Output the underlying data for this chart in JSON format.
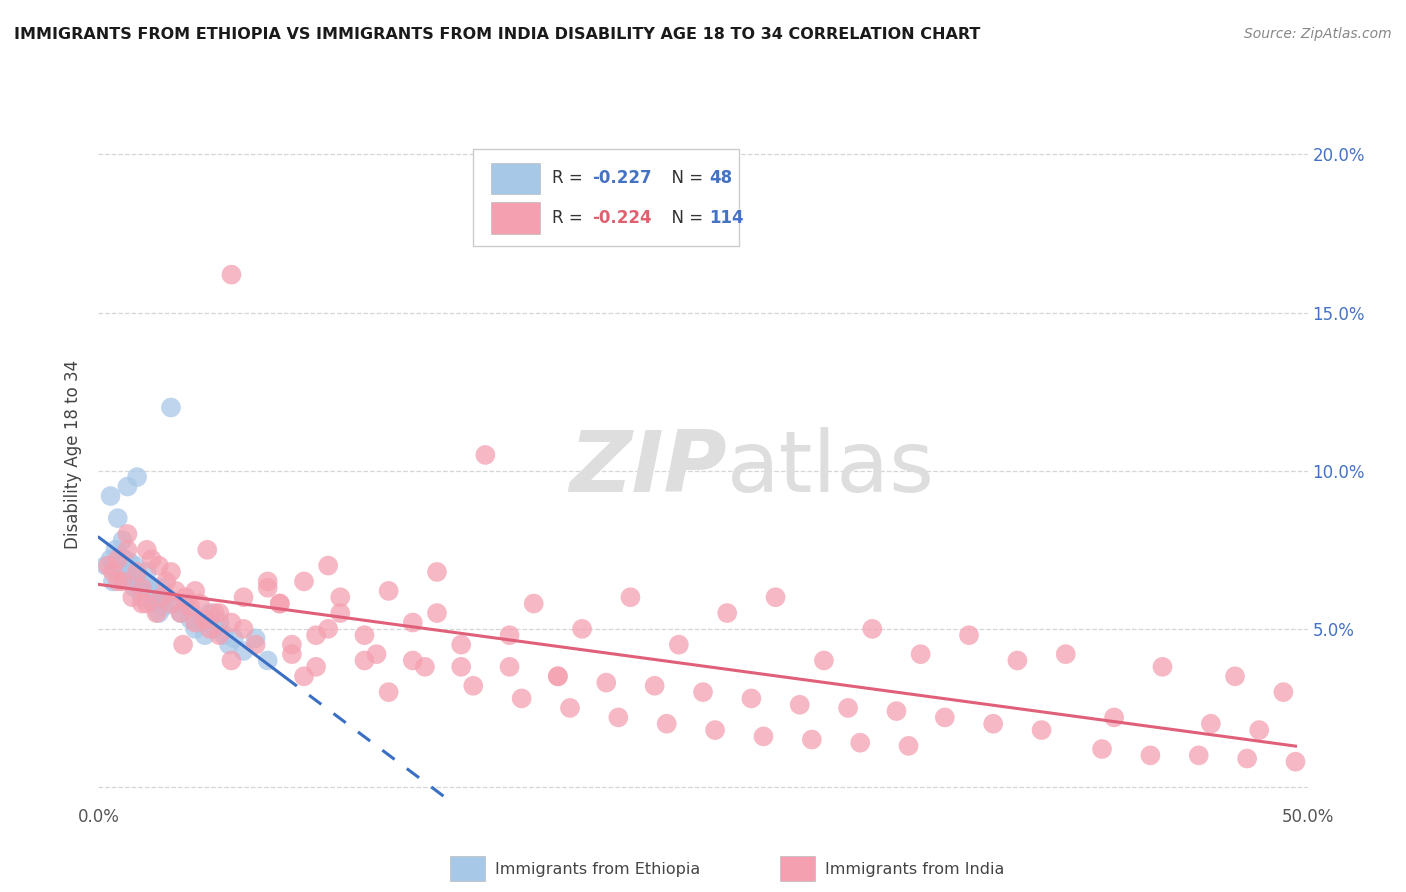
{
  "title": "IMMIGRANTS FROM ETHIOPIA VS IMMIGRANTS FROM INDIA DISABILITY AGE 18 TO 34 CORRELATION CHART",
  "source": "Source: ZipAtlas.com",
  "ylabel": "Disability Age 18 to 34",
  "xlim": [
    0.0,
    0.5
  ],
  "ylim": [
    -0.005,
    0.215
  ],
  "ytick_pos": [
    0.0,
    0.05,
    0.1,
    0.15,
    0.2
  ],
  "color_ethiopia": "#a8c8e8",
  "color_india": "#f4a0b0",
  "color_ethiopia_line": "#3a6fc4",
  "color_india_line": "#e0607a",
  "scatter_alpha": 0.75,
  "scatter_size": 200,
  "background_color": "#ffffff",
  "grid_color": "#cccccc",
  "watermark_color": "#dedede",
  "ethiopia_x": [
    0.003,
    0.005,
    0.006,
    0.007,
    0.008,
    0.009,
    0.01,
    0.01,
    0.011,
    0.012,
    0.013,
    0.014,
    0.015,
    0.015,
    0.016,
    0.017,
    0.018,
    0.019,
    0.02,
    0.021,
    0.022,
    0.023,
    0.024,
    0.025,
    0.026,
    0.027,
    0.028,
    0.03,
    0.032,
    0.034,
    0.036,
    0.038,
    0.04,
    0.042,
    0.044,
    0.046,
    0.048,
    0.05,
    0.052,
    0.054,
    0.056,
    0.06,
    0.065,
    0.07,
    0.005,
    0.008,
    0.012,
    0.016
  ],
  "ethiopia_y": [
    0.07,
    0.072,
    0.065,
    0.075,
    0.068,
    0.073,
    0.066,
    0.078,
    0.072,
    0.069,
    0.071,
    0.065,
    0.063,
    0.07,
    0.067,
    0.063,
    0.06,
    0.065,
    0.068,
    0.064,
    0.062,
    0.058,
    0.06,
    0.055,
    0.063,
    0.057,
    0.06,
    0.12,
    0.058,
    0.055,
    0.057,
    0.053,
    0.05,
    0.052,
    0.048,
    0.055,
    0.05,
    0.052,
    0.048,
    0.045,
    0.047,
    0.043,
    0.047,
    0.04,
    0.092,
    0.085,
    0.095,
    0.098
  ],
  "india_x": [
    0.004,
    0.006,
    0.008,
    0.01,
    0.012,
    0.014,
    0.016,
    0.018,
    0.02,
    0.022,
    0.024,
    0.026,
    0.028,
    0.03,
    0.032,
    0.034,
    0.036,
    0.038,
    0.04,
    0.042,
    0.044,
    0.046,
    0.048,
    0.05,
    0.055,
    0.06,
    0.065,
    0.07,
    0.075,
    0.08,
    0.085,
    0.09,
    0.095,
    0.1,
    0.11,
    0.12,
    0.13,
    0.14,
    0.15,
    0.16,
    0.17,
    0.18,
    0.19,
    0.2,
    0.21,
    0.22,
    0.23,
    0.24,
    0.25,
    0.26,
    0.27,
    0.28,
    0.29,
    0.3,
    0.31,
    0.32,
    0.33,
    0.34,
    0.35,
    0.36,
    0.37,
    0.38,
    0.39,
    0.4,
    0.42,
    0.44,
    0.46,
    0.47,
    0.48,
    0.49,
    0.008,
    0.012,
    0.018,
    0.025,
    0.035,
    0.045,
    0.055,
    0.07,
    0.085,
    0.1,
    0.12,
    0.14,
    0.02,
    0.03,
    0.04,
    0.05,
    0.06,
    0.08,
    0.09,
    0.11,
    0.13,
    0.15,
    0.17,
    0.19,
    0.055,
    0.075,
    0.095,
    0.115,
    0.135,
    0.155,
    0.175,
    0.195,
    0.215,
    0.235,
    0.255,
    0.275,
    0.295,
    0.315,
    0.335,
    0.415,
    0.435,
    0.455,
    0.475,
    0.495
  ],
  "india_y": [
    0.07,
    0.068,
    0.072,
    0.065,
    0.075,
    0.06,
    0.068,
    0.063,
    0.058,
    0.072,
    0.055,
    0.06,
    0.065,
    0.058,
    0.062,
    0.055,
    0.06,
    0.057,
    0.052,
    0.058,
    0.053,
    0.05,
    0.055,
    0.048,
    0.052,
    0.06,
    0.045,
    0.063,
    0.058,
    0.042,
    0.065,
    0.038,
    0.07,
    0.055,
    0.048,
    0.062,
    0.04,
    0.068,
    0.045,
    0.105,
    0.038,
    0.058,
    0.035,
    0.05,
    0.033,
    0.06,
    0.032,
    0.045,
    0.03,
    0.055,
    0.028,
    0.06,
    0.026,
    0.04,
    0.025,
    0.05,
    0.024,
    0.042,
    0.022,
    0.048,
    0.02,
    0.04,
    0.018,
    0.042,
    0.022,
    0.038,
    0.02,
    0.035,
    0.018,
    0.03,
    0.065,
    0.08,
    0.058,
    0.07,
    0.045,
    0.075,
    0.04,
    0.065,
    0.035,
    0.06,
    0.03,
    0.055,
    0.075,
    0.068,
    0.062,
    0.055,
    0.05,
    0.045,
    0.048,
    0.04,
    0.052,
    0.038,
    0.048,
    0.035,
    0.162,
    0.058,
    0.05,
    0.042,
    0.038,
    0.032,
    0.028,
    0.025,
    0.022,
    0.02,
    0.018,
    0.016,
    0.015,
    0.014,
    0.013,
    0.012,
    0.01,
    0.01,
    0.009,
    0.008
  ]
}
